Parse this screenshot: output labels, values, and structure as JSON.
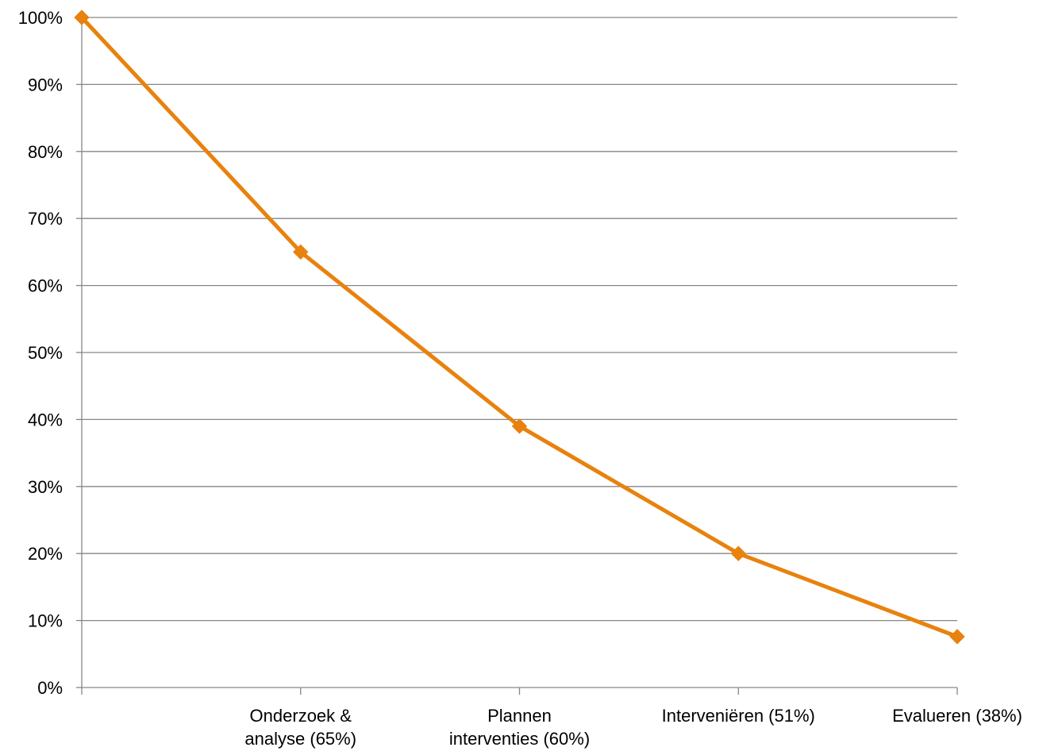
{
  "chart_data": {
    "type": "line",
    "title": "",
    "xlabel": "",
    "ylabel": "",
    "categories": [
      "",
      "Onderzoek & analyse (65%)",
      "Plannen interventies (60%)",
      "Interveniëren (51%)",
      "Evalueren (38%)"
    ],
    "category_lines": [
      [
        ""
      ],
      [
        "Onderzoek &",
        "analyse (65%)"
      ],
      [
        "Plannen",
        "interventies (60%)"
      ],
      [
        "Interveniëren (51%)"
      ],
      [
        "Evalueren (38%)"
      ]
    ],
    "series": [
      {
        "values": [
          100,
          65,
          39,
          20,
          7.6
        ],
        "color": "#E8820E",
        "marker": "diamond"
      }
    ],
    "ylim": [
      0,
      100
    ],
    "yticks": [
      0,
      10,
      20,
      30,
      40,
      50,
      60,
      70,
      80,
      90,
      100
    ],
    "ytick_labels": [
      "0%",
      "10%",
      "20%",
      "30%",
      "40%",
      "50%",
      "60%",
      "70%",
      "80%",
      "90%",
      "100%"
    ],
    "grid": true,
    "legend": "none",
    "colors": {
      "line": "#E8820E",
      "grid": "#868686",
      "axis": "#868686"
    }
  }
}
